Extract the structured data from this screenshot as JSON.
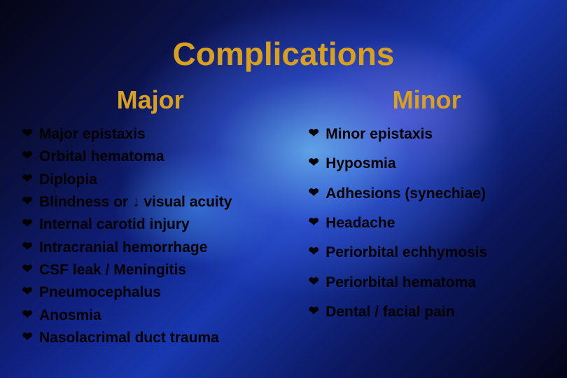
{
  "title": "Complications",
  "columns": {
    "left": {
      "header": "Major",
      "items": [
        "Major epistaxis",
        "Orbital hematoma",
        "Diplopia",
        "Blindness or ↓ visual acuity",
        "Internal carotid injury",
        "Intracranial hemorrhage",
        "CSF leak / Meningitis",
        "Pneumocephalus",
        "Anosmia",
        "Nasolacrimal duct trauma"
      ]
    },
    "right": {
      "header": "Minor",
      "items": [
        "Minor epistaxis",
        "Hyposmia",
        "Adhesions (synechiae)",
        "Headache",
        "Periorbital echhymosis",
        "Periorbital hematoma",
        "Dental / facial pain"
      ]
    }
  },
  "style": {
    "bullet_glyph": "❤",
    "title_color": "#d9a020",
    "header_color": "#d9a020",
    "text_color": "#000000",
    "title_fontsize": 46,
    "header_fontsize": 36,
    "item_fontsize": 21
  }
}
